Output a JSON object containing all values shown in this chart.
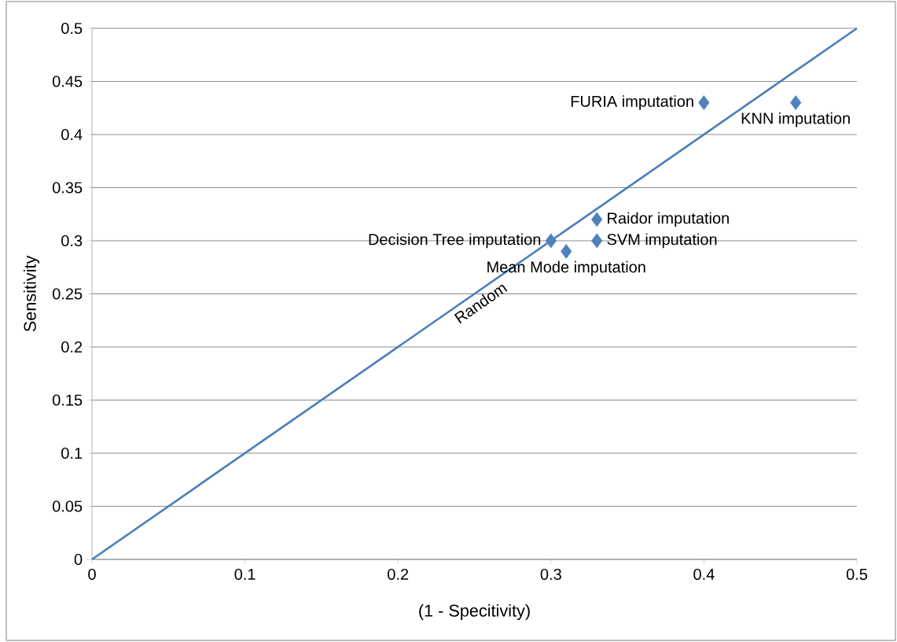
{
  "chart_data": {
    "type": "scatter",
    "xlabel": "(1 - Specitivity)",
    "ylabel": "Sensitivity",
    "series": [
      {
        "type": "line",
        "name": "Random",
        "color": "#4a7ebb",
        "x": [
          0,
          0.5
        ],
        "values": [
          0,
          0.5
        ],
        "marker": "none"
      },
      {
        "color": "#4f81bd",
        "x": [
          0.4,
          0.46,
          0.33,
          0.33,
          0.3,
          0.31
        ],
        "values": [
          0.43,
          0.43,
          0.32,
          0.3,
          0.3,
          0.29
        ],
        "marker": "diamond"
      }
    ],
    "annotations": [
      {
        "text": "FURIA imputation",
        "x": 0.4,
        "y": 0.43
      },
      {
        "text": "KNN imputation",
        "x": 0.46,
        "y": 0.43
      },
      {
        "text": "Raidor  imputation",
        "x": 0.33,
        "y": 0.32
      },
      {
        "text": "SVM imputation",
        "x": 0.33,
        "y": 0.3
      },
      {
        "text": "Decision Tree imputation",
        "x": 0.3,
        "y": 0.3
      },
      {
        "text": "Mean Mode imputation",
        "x": 0.31,
        "y": 0.29
      }
    ],
    "xlim": [
      0,
      0.5
    ],
    "ylim": [
      0,
      0.5
    ],
    "xticks": [
      0,
      0.1,
      0.2,
      0.3,
      0.4,
      0.5
    ],
    "yticks": [
      0,
      0.05,
      0.1,
      0.15,
      0.2,
      0.25,
      0.3,
      0.35,
      0.4,
      0.45,
      0.5
    ],
    "grid": "y",
    "legend": false
  }
}
